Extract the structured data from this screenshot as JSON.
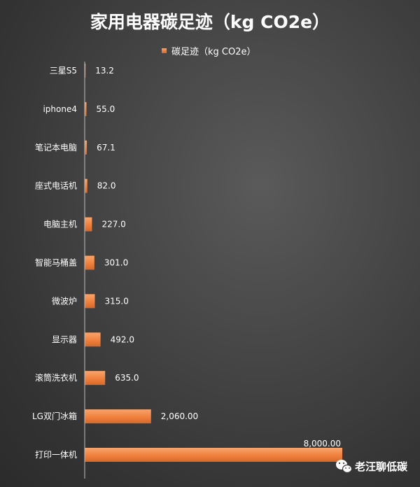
{
  "chart_data": {
    "type": "bar",
    "orientation": "horizontal",
    "title": "家用电器碳足迹（kg CO2e）",
    "legend": {
      "label": "碳足迹（kg CO2e）",
      "position": "top"
    },
    "categories": [
      "三星S5",
      "iphone4",
      "笔记本电脑",
      "座式电话机",
      "电脑主机",
      "智能马桶盖",
      "微波炉",
      "显示器",
      "滚筒洗衣机",
      "LG双门冰箱",
      "打印一体机"
    ],
    "values": [
      13.2,
      55.0,
      67.1,
      82.0,
      227.0,
      301.0,
      315.0,
      492.0,
      635.0,
      2060.0,
      8000.0
    ],
    "value_labels": [
      "13.2",
      "55.0",
      "67.1",
      "82.0",
      "227.0",
      "301.0",
      "315.0",
      "492.0",
      "635.0",
      "2,060.00",
      "8,000.00"
    ],
    "xlim": [
      0,
      8000
    ],
    "grid": false,
    "colors": {
      "bar": "#f0803c",
      "bar_light": "#f6a06a",
      "bar_dark": "#d86a28",
      "axis": "#bfbfbf",
      "text": "#ffffff"
    }
  },
  "watermark": {
    "text": "老汪聊低碳",
    "icon": "wechat-icon"
  }
}
